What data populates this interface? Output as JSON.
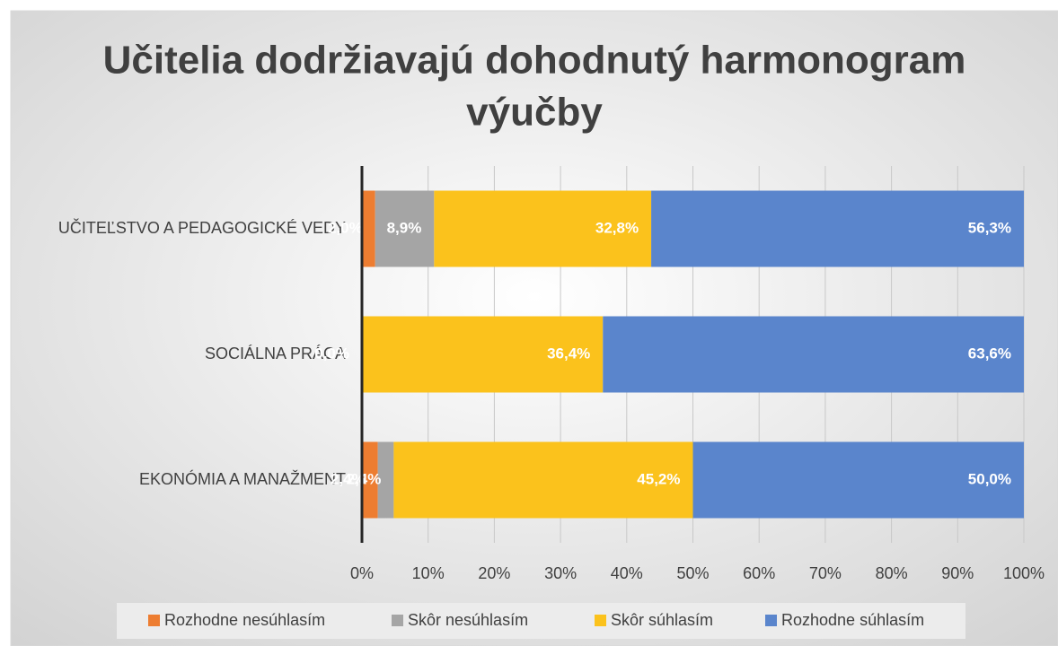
{
  "chart_data": {
    "type": "stacked_barh",
    "title": "Učitelia dodržiavajú dohodnutý harmonogram výučby",
    "categories": [
      "UČITEĽSTVO A PEDAGOGICKÉ VEDY",
      "SOCIÁLNA PRÁCA",
      "EKONÓMIA A MANAŽMENT"
    ],
    "series": [
      {
        "name": "Rozhodne nesúhlasím",
        "color": "#ed7d31",
        "values": [
          2.0,
          0,
          2.4
        ],
        "value_labels": [
          "2,0%",
          "0,0%",
          "2,4%"
        ]
      },
      {
        "name": "Skôr nesúhlasím",
        "color": "#a5a5a5",
        "values": [
          8.9,
          0,
          2.4
        ],
        "value_labels": [
          "8,9%",
          "0,0%",
          "2,4%"
        ]
      },
      {
        "name": "Skôr súhlasím",
        "color": "#fbc21c",
        "values": [
          32.8,
          36.4,
          45.2
        ],
        "value_labels": [
          "32,8%",
          "36,4%",
          "45,2%"
        ]
      },
      {
        "name": "Rozhodne súhlasím",
        "color": "#5a85cc",
        "values": [
          56.3,
          63.6,
          50.0
        ],
        "value_labels": [
          "56,3%",
          "63,6%",
          "50,0%"
        ]
      }
    ],
    "xlim": [
      0,
      100
    ],
    "xticks": [
      {
        "value": 0,
        "label": "0%"
      },
      {
        "value": 10,
        "label": "10%"
      },
      {
        "value": 20,
        "label": "20%"
      },
      {
        "value": 30,
        "label": "30%"
      },
      {
        "value": 40,
        "label": "40%"
      },
      {
        "value": 50,
        "label": "50%"
      },
      {
        "value": 60,
        "label": "60%"
      },
      {
        "value": 70,
        "label": "70%"
      },
      {
        "value": 80,
        "label": "80%"
      },
      {
        "value": 90,
        "label": "90%"
      },
      {
        "value": 100,
        "label": "100%"
      }
    ],
    "grid": true,
    "legend": "bottom"
  }
}
